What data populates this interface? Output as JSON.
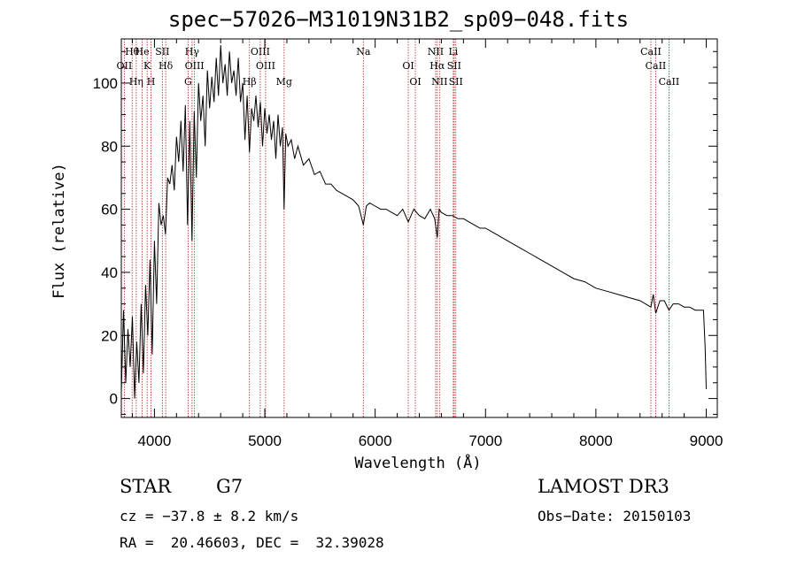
{
  "header": {
    "title": "spec−57026−M31019N31B2_sp09−048.fits"
  },
  "info": {
    "class_label": "STAR",
    "subclass": "G7",
    "survey": "LAMOST DR3",
    "cz_text": "cz = −37.8 ± 8.2 km/s",
    "obs_date_text": "Obs−Date: 20150103",
    "radec_text": "RA =  20.46603, DEC =  32.39028"
  },
  "colors": {
    "line_marker": "#b22222",
    "spectrum": "#000000",
    "axes": "#000000"
  },
  "chart_data": {
    "type": "line",
    "title": "spec−57026−M31019N31B2_sp09−048.fits",
    "xlabel": "Wavelength (Å)",
    "ylabel": "Flux (relative)",
    "xlim": [
      3700,
      9100
    ],
    "ylim": [
      -6,
      114
    ],
    "xticks": [
      4000,
      5000,
      6000,
      7000,
      8000,
      9000
    ],
    "yticks": [
      0,
      20,
      40,
      60,
      80,
      100
    ],
    "grid": false,
    "series": [
      {
        "x": [
          3700,
          3720,
          3740,
          3760,
          3780,
          3800,
          3820,
          3840,
          3860,
          3880,
          3900,
          3920,
          3940,
          3960,
          3980,
          4000,
          4020,
          4040,
          4060,
          4080,
          4100,
          4120,
          4140,
          4160,
          4180,
          4200,
          4220,
          4240,
          4260,
          4280,
          4300,
          4320,
          4340,
          4360,
          4380,
          4400,
          4420,
          4440,
          4460,
          4480,
          4500,
          4520,
          4540,
          4560,
          4580,
          4600,
          4620,
          4640,
          4660,
          4680,
          4700,
          4720,
          4740,
          4760,
          4780,
          4800,
          4820,
          4840,
          4861,
          4880,
          4900,
          4920,
          4940,
          4960,
          4980,
          5000,
          5020,
          5040,
          5060,
          5080,
          5100,
          5120,
          5140,
          5160,
          5175,
          5190,
          5210,
          5240,
          5270,
          5300,
          5350,
          5400,
          5450,
          5500,
          5550,
          5600,
          5650,
          5700,
          5750,
          5800,
          5850,
          5893,
          5920,
          5950,
          6000,
          6050,
          6100,
          6150,
          6200,
          6250,
          6300,
          6350,
          6400,
          6450,
          6500,
          6540,
          6563,
          6580,
          6600,
          6650,
          6700,
          6750,
          6800,
          6850,
          6900,
          6950,
          7000,
          7100,
          7200,
          7300,
          7400,
          7500,
          7600,
          7700,
          7800,
          7900,
          8000,
          8100,
          8200,
          8300,
          8400,
          8498,
          8520,
          8542,
          8580,
          8620,
          8662,
          8700,
          8750,
          8800,
          8850,
          8900,
          8950,
          8975,
          8990,
          9000
        ],
        "values": [
          2,
          28,
          5,
          22,
          10,
          26,
          0,
          18,
          5,
          30,
          8,
          36,
          20,
          44,
          14,
          50,
          30,
          62,
          55,
          58,
          52,
          70,
          68,
          74,
          66,
          83,
          75,
          88,
          72,
          93,
          55,
          88,
          50,
          91,
          70,
          100,
          88,
          96,
          80,
          104,
          92,
          102,
          94,
          108,
          96,
          112,
          100,
          106,
          96,
          110,
          100,
          104,
          96,
          108,
          94,
          100,
          82,
          96,
          78,
          92,
          88,
          96,
          86,
          94,
          80,
          92,
          84,
          90,
          82,
          88,
          76,
          90,
          80,
          86,
          60,
          84,
          80,
          82,
          76,
          80,
          74,
          76,
          71,
          72,
          68,
          68,
          66,
          65,
          64,
          63,
          61,
          55,
          61,
          62,
          61,
          60,
          60,
          59,
          58,
          60,
          56,
          60,
          58,
          57,
          60,
          57,
          51,
          60,
          59,
          58,
          58,
          57,
          57,
          56,
          55,
          54,
          54,
          52,
          50,
          48,
          46,
          44,
          42,
          40,
          38,
          37,
          35,
          34,
          33,
          32,
          31,
          29,
          33,
          27,
          31,
          31,
          28,
          30,
          30,
          29,
          29,
          28,
          28,
          28,
          16,
          3
        ]
      }
    ],
    "lines": [
      {
        "label": "Hθ",
        "x": 3798
      },
      {
        "label": "OII",
        "x": 3727
      },
      {
        "label": "Hη",
        "x": 3835
      },
      {
        "label": "He",
        "x": 3889
      },
      {
        "label": "K",
        "x": 3934
      },
      {
        "label": "H",
        "x": 3969
      },
      {
        "label": "SII",
        "x": 4072
      },
      {
        "label": "Hδ",
        "x": 4102
      },
      {
        "label": "G",
        "x": 4305
      },
      {
        "label": "Hγ",
        "x": 4341
      },
      {
        "label": "OIII",
        "x": 4363
      },
      {
        "label": "Hβ",
        "x": 4861
      },
      {
        "label": "OIII",
        "x": 4959
      },
      {
        "label": "OIII",
        "x": 5007
      },
      {
        "label": "Mg",
        "x": 5175
      },
      {
        "label": "Na",
        "x": 5893
      },
      {
        "label": "OI",
        "x": 6300
      },
      {
        "label": "OI",
        "x": 6364
      },
      {
        "label": "NII",
        "x": 6548
      },
      {
        "label": "Hα",
        "x": 6563
      },
      {
        "label": "NII",
        "x": 6583
      },
      {
        "label": "Li",
        "x": 6708
      },
      {
        "label": "SII",
        "x": 6716
      },
      {
        "label": "SII",
        "x": 6731
      },
      {
        "label": "CaII",
        "x": 8498
      },
      {
        "label": "CaII",
        "x": 8542
      },
      {
        "label": "CaII",
        "x": 8662
      }
    ]
  }
}
